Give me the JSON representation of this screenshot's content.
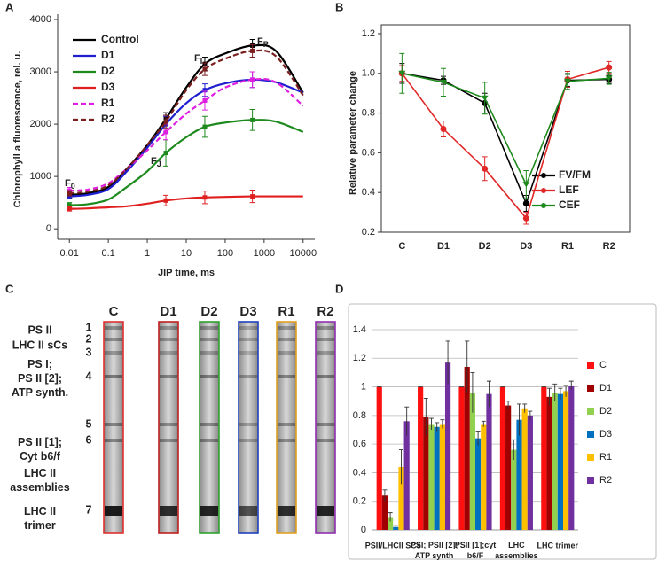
{
  "chart_data": [
    {
      "type": "line",
      "panel_label": "A",
      "xlabel": "JIP time, ms",
      "ylabel": "Chlorophyll a fluorescence, rel. u.",
      "xscale": "log",
      "xlim": [
        0.005,
        20000
      ],
      "xticks": [
        0.01,
        0.1,
        1,
        10,
        100,
        1000,
        10000
      ],
      "ylim": [
        -200,
        4000
      ],
      "yticks": [
        0,
        1000,
        2000,
        3000,
        4000
      ],
      "legend": "upper left",
      "x": [
        0.01,
        0.03,
        0.1,
        0.3,
        1,
        3,
        10,
        30,
        100,
        500,
        2000,
        10000
      ],
      "series": [
        {
          "name": "Control",
          "color": "#000000",
          "dash": false,
          "values": [
            650,
            680,
            800,
            1150,
            1600,
            2100,
            2700,
            3150,
            3350,
            3500,
            3400,
            2600
          ],
          "errors": [
            60,
            null,
            null,
            null,
            null,
            120,
            null,
            130,
            null,
            120,
            null,
            null
          ]
        },
        {
          "name": "D1",
          "color": "#1f1fd0",
          "dash": false,
          "values": [
            620,
            650,
            760,
            1100,
            1550,
            2000,
            2400,
            2650,
            2780,
            2850,
            2800,
            2600
          ],
          "errors": [
            50,
            null,
            null,
            null,
            null,
            150,
            null,
            120,
            null,
            150,
            null,
            null
          ]
        },
        {
          "name": "D2",
          "color": "#1e8a1e",
          "dash": false,
          "values": [
            450,
            470,
            560,
            800,
            1100,
            1450,
            1750,
            1950,
            2030,
            2080,
            2050,
            1850
          ],
          "errors": [
            50,
            null,
            null,
            null,
            null,
            250,
            null,
            200,
            null,
            200,
            null,
            null
          ]
        },
        {
          "name": "D3",
          "color": "#e02020",
          "dash": false,
          "values": [
            380,
            390,
            410,
            430,
            480,
            540,
            580,
            600,
            610,
            620,
            620,
            620
          ],
          "errors": [
            40,
            null,
            null,
            null,
            null,
            100,
            null,
            120,
            null,
            120,
            null,
            null
          ]
        },
        {
          "name": "R1",
          "color": "#e020e0",
          "dash": true,
          "values": [
            730,
            750,
            870,
            1150,
            1500,
            1850,
            2200,
            2450,
            2700,
            2850,
            2800,
            2350
          ],
          "errors": [
            60,
            null,
            null,
            null,
            null,
            150,
            null,
            180,
            null,
            150,
            null,
            null
          ]
        },
        {
          "name": "R2",
          "color": "#7a1e1e",
          "dash": true,
          "values": [
            680,
            710,
            830,
            1150,
            1600,
            2050,
            2650,
            3050,
            3250,
            3400,
            3300,
            2550
          ],
          "errors": [
            50,
            null,
            null,
            null,
            null,
            120,
            null,
            120,
            null,
            120,
            null,
            null
          ]
        }
      ],
      "annotations": [
        {
          "text": "F",
          "sub": "0"
        },
        {
          "text": "F",
          "sub": "J"
        },
        {
          "text": "F",
          "sub": "I"
        },
        {
          "text": "F",
          "sub": "P"
        }
      ]
    },
    {
      "type": "line",
      "panel_label": "B",
      "ylabel": "Relative parameter change",
      "categories": [
        "C",
        "D1",
        "D2",
        "D3",
        "R1",
        "R2"
      ],
      "ylim": [
        0.2,
        1.2
      ],
      "yticks": [
        0.2,
        0.4,
        0.6,
        0.8,
        {
          "value": 1,
          "label": "1.0"
        },
        1.2
      ],
      "legend": "lower right",
      "series": [
        {
          "name": "FV/FM",
          "color": "#000000",
          "marker": "circle",
          "values": [
            1,
            0.965,
            0.85,
            0.345,
            0.965,
            0.97
          ],
          "errors": [
            0.05,
            0.02,
            0.05,
            0.04,
            0.03,
            0.02
          ]
        },
        {
          "name": "LEF",
          "color": "#e02828",
          "marker": "circle",
          "values": [
            1,
            0.72,
            0.52,
            0.27,
            0.97,
            1.03
          ],
          "errors": [
            0.04,
            0.04,
            0.06,
            0.03,
            0.04,
            0.03
          ]
        },
        {
          "name": "CEF",
          "color": "#1e8a1e",
          "marker": "triangle",
          "values": [
            1,
            0.955,
            0.875,
            0.44,
            0.96,
            0.975
          ],
          "errors": [
            0.1,
            0.07,
            0.08,
            0.07,
            0.04,
            0.03
          ]
        }
      ]
    },
    {
      "type": "bar",
      "panel_label": "D",
      "legend": "right",
      "grid": true,
      "categories": [
        "PSII/LHCII SCs",
        "PSI; PSII [2];\nATP synth",
        "PSII [1];cyt\nb6/F",
        "LHC\nassemblies",
        "LHC trimer"
      ],
      "ylim": [
        0,
        1.4
      ],
      "yticks": [
        0,
        0.2,
        0.4,
        0.6,
        0.8,
        1,
        1.2,
        1.4
      ],
      "series": [
        {
          "name": "C",
          "color": "#ff1010",
          "values": [
            1,
            1,
            1,
            1,
            1
          ],
          "errors": [
            0,
            0,
            0,
            0,
            0
          ]
        },
        {
          "name": "D1",
          "color": "#a00000",
          "values": [
            0.24,
            0.79,
            1.14,
            0.87,
            0.93
          ],
          "errors": [
            0.04,
            0.13,
            0.18,
            0.03,
            0.06
          ]
        },
        {
          "name": "D2",
          "color": "#92d050",
          "values": [
            0.09,
            0.74,
            0.96,
            0.56,
            0.96
          ],
          "errors": [
            0.03,
            0.04,
            0.14,
            0.07,
            0.06
          ]
        },
        {
          "name": "D3",
          "color": "#0070c0",
          "values": [
            0.02,
            0.72,
            0.64,
            0.77,
            0.95
          ],
          "errors": [
            0.01,
            0.03,
            0.05,
            0.11,
            0.04
          ]
        },
        {
          "name": "R1",
          "color": "#ffc000",
          "values": [
            0.44,
            0.74,
            0.74,
            0.85,
            0.97
          ],
          "errors": [
            0.12,
            0.03,
            0.02,
            0.03,
            0.04
          ]
        },
        {
          "name": "R2",
          "color": "#7030a0",
          "values": [
            0.76,
            1.17,
            0.95,
            0.8,
            1.01
          ],
          "errors": [
            0.1,
            0.15,
            0.09,
            0.03,
            0.03
          ]
        }
      ]
    }
  ],
  "gel": {
    "panel_label": "C",
    "lanes": [
      "C",
      "D1",
      "D2",
      "D3",
      "R1",
      "R2"
    ],
    "lane_colors": [
      "#e03030",
      "#c02020",
      "#30a030",
      "#2040c0",
      "#e0a020",
      "#9030b0"
    ],
    "band_numbers": [
      "1",
      "2",
      "3",
      "4",
      "5",
      "6",
      "7"
    ],
    "labels": [
      "PS II",
      "LHC II sCs",
      "PS I;\nPS II [2];\nATP synth.",
      "PS II [1];\nCyt b6/f",
      "LHC II\nassemblies",
      "LHC II\ntrimer"
    ]
  }
}
